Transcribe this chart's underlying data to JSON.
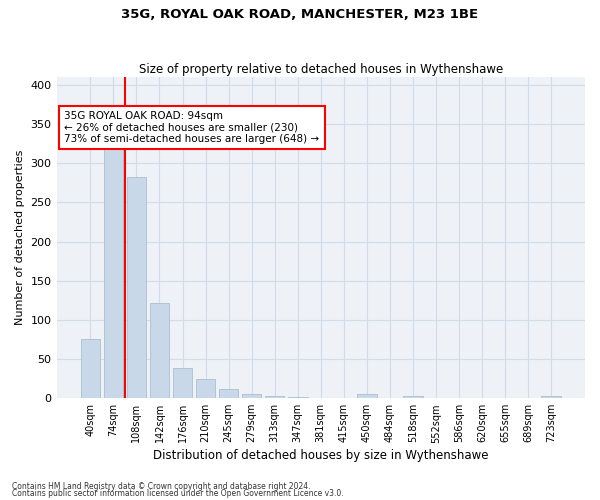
{
  "title": "35G, ROYAL OAK ROAD, MANCHESTER, M23 1BE",
  "subtitle": "Size of property relative to detached houses in Wythenshawe",
  "xlabel": "Distribution of detached houses by size in Wythenshawe",
  "ylabel": "Number of detached properties",
  "footnote1": "Contains HM Land Registry data © Crown copyright and database right 2024.",
  "footnote2": "Contains public sector information licensed under the Open Government Licence v3.0.",
  "bar_labels": [
    "40sqm",
    "74sqm",
    "108sqm",
    "142sqm",
    "176sqm",
    "210sqm",
    "245sqm",
    "279sqm",
    "313sqm",
    "347sqm",
    "381sqm",
    "415sqm",
    "450sqm",
    "484sqm",
    "518sqm",
    "552sqm",
    "586sqm",
    "620sqm",
    "655sqm",
    "689sqm",
    "723sqm"
  ],
  "bar_values": [
    75,
    328,
    283,
    121,
    38,
    25,
    12,
    5,
    3,
    1,
    0,
    0,
    5,
    0,
    3,
    0,
    0,
    0,
    0,
    0,
    3
  ],
  "bar_color": "#c8d8e8",
  "bar_edge_color": "#a0b8cc",
  "grid_color": "#d0dce8",
  "bg_color": "#eef2f7",
  "vline_x": 1.5,
  "vline_color": "red",
  "annotation_text": "35G ROYAL OAK ROAD: 94sqm\n← 26% of detached houses are smaller (230)\n73% of semi-detached houses are larger (648) →",
  "annotation_box_color": "white",
  "annotation_box_edge": "red",
  "ylim": [
    0,
    410
  ],
  "yticks": [
    0,
    50,
    100,
    150,
    200,
    250,
    300,
    350,
    400
  ]
}
